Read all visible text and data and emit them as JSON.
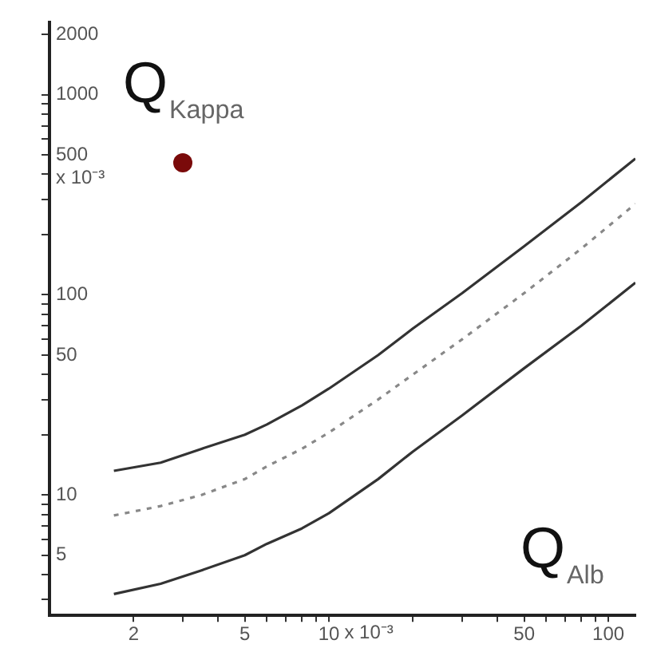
{
  "chart_data": {
    "type": "line",
    "xlabel": "Q$_{Alb}$",
    "ylabel": "Q$_{Kappa}$",
    "annotations": [
      "x 10⁻³",
      "x 10⁻³"
    ],
    "log": "xy",
    "grid": false,
    "legend": false,
    "xlim": [
      1,
      125
    ],
    "ylim": [
      2.5,
      2300
    ],
    "xticks": [
      2,
      {
        "value": 3,
        "label": null
      },
      {
        "value": 4,
        "label": null
      },
      5,
      {
        "value": 6,
        "label": null
      },
      {
        "value": 7,
        "label": null
      },
      {
        "value": 8,
        "label": null
      },
      {
        "value": 9,
        "label": null
      },
      10,
      {
        "value": 20,
        "label": null
      },
      {
        "value": 30,
        "label": null
      },
      {
        "value": 40,
        "label": null
      },
      50,
      {
        "value": 60,
        "label": null
      },
      {
        "value": 70,
        "label": null
      },
      {
        "value": 80,
        "label": null
      },
      {
        "value": 90,
        "label": null
      },
      100
    ],
    "yticks": [
      {
        "value": 3,
        "label": null
      },
      {
        "value": 4,
        "label": null
      },
      5,
      {
        "value": 6,
        "label": null
      },
      {
        "value": 7,
        "label": null
      },
      {
        "value": 8,
        "label": null
      },
      {
        "value": 9,
        "label": null
      },
      10,
      {
        "value": 20,
        "label": null
      },
      {
        "value": 30,
        "label": null
      },
      {
        "value": 40,
        "label": null
      },
      50,
      {
        "value": 60,
        "label": null
      },
      {
        "value": 70,
        "label": null
      },
      {
        "value": 80,
        "label": null
      },
      {
        "value": 90,
        "label": null
      },
      100,
      {
        "value": 200,
        "label": null
      },
      {
        "value": 300,
        "label": null
      },
      {
        "value": 400,
        "label": null
      },
      500,
      {
        "value": 600,
        "label": null
      },
      {
        "value": 700,
        "label": null
      },
      {
        "value": 800,
        "label": null
      },
      {
        "value": 900,
        "label": null
      },
      1000,
      2000
    ],
    "series": [
      {
        "color": "#333333",
        "line_style": "solid",
        "marker": "none",
        "x": [
          1.7,
          2.5,
          3.5,
          5,
          6,
          8,
          10,
          15,
          20,
          30,
          50,
          80,
          125
        ],
        "values": [
          13.2,
          14.5,
          17,
          20,
          22.5,
          28,
          34,
          50,
          68,
          102,
          175,
          290,
          480
        ]
      },
      {
        "color": "#888888",
        "line_style": "dotted",
        "marker": "none",
        "x": [
          1.7,
          2.5,
          3.5,
          5,
          6,
          8,
          10,
          15,
          20,
          30,
          50,
          80,
          125
        ],
        "values": [
          7.9,
          8.8,
          10,
          12,
          13.9,
          17,
          20.5,
          30,
          40,
          60,
          102,
          170,
          285
        ]
      },
      {
        "color": "#333333",
        "line_style": "solid",
        "marker": "none",
        "x": [
          1.7,
          2.5,
          3.5,
          5,
          6,
          8,
          10,
          15,
          20,
          30,
          50,
          80,
          125
        ],
        "values": [
          3.2,
          3.6,
          4.2,
          5,
          5.7,
          6.8,
          8.1,
          12,
          16.5,
          25,
          43,
          70,
          115
        ]
      },
      {
        "type": "scatter",
        "color": "#7a0a0a",
        "marker": "circle",
        "x": [
          3
        ],
        "values": [
          457
        ]
      }
    ]
  }
}
